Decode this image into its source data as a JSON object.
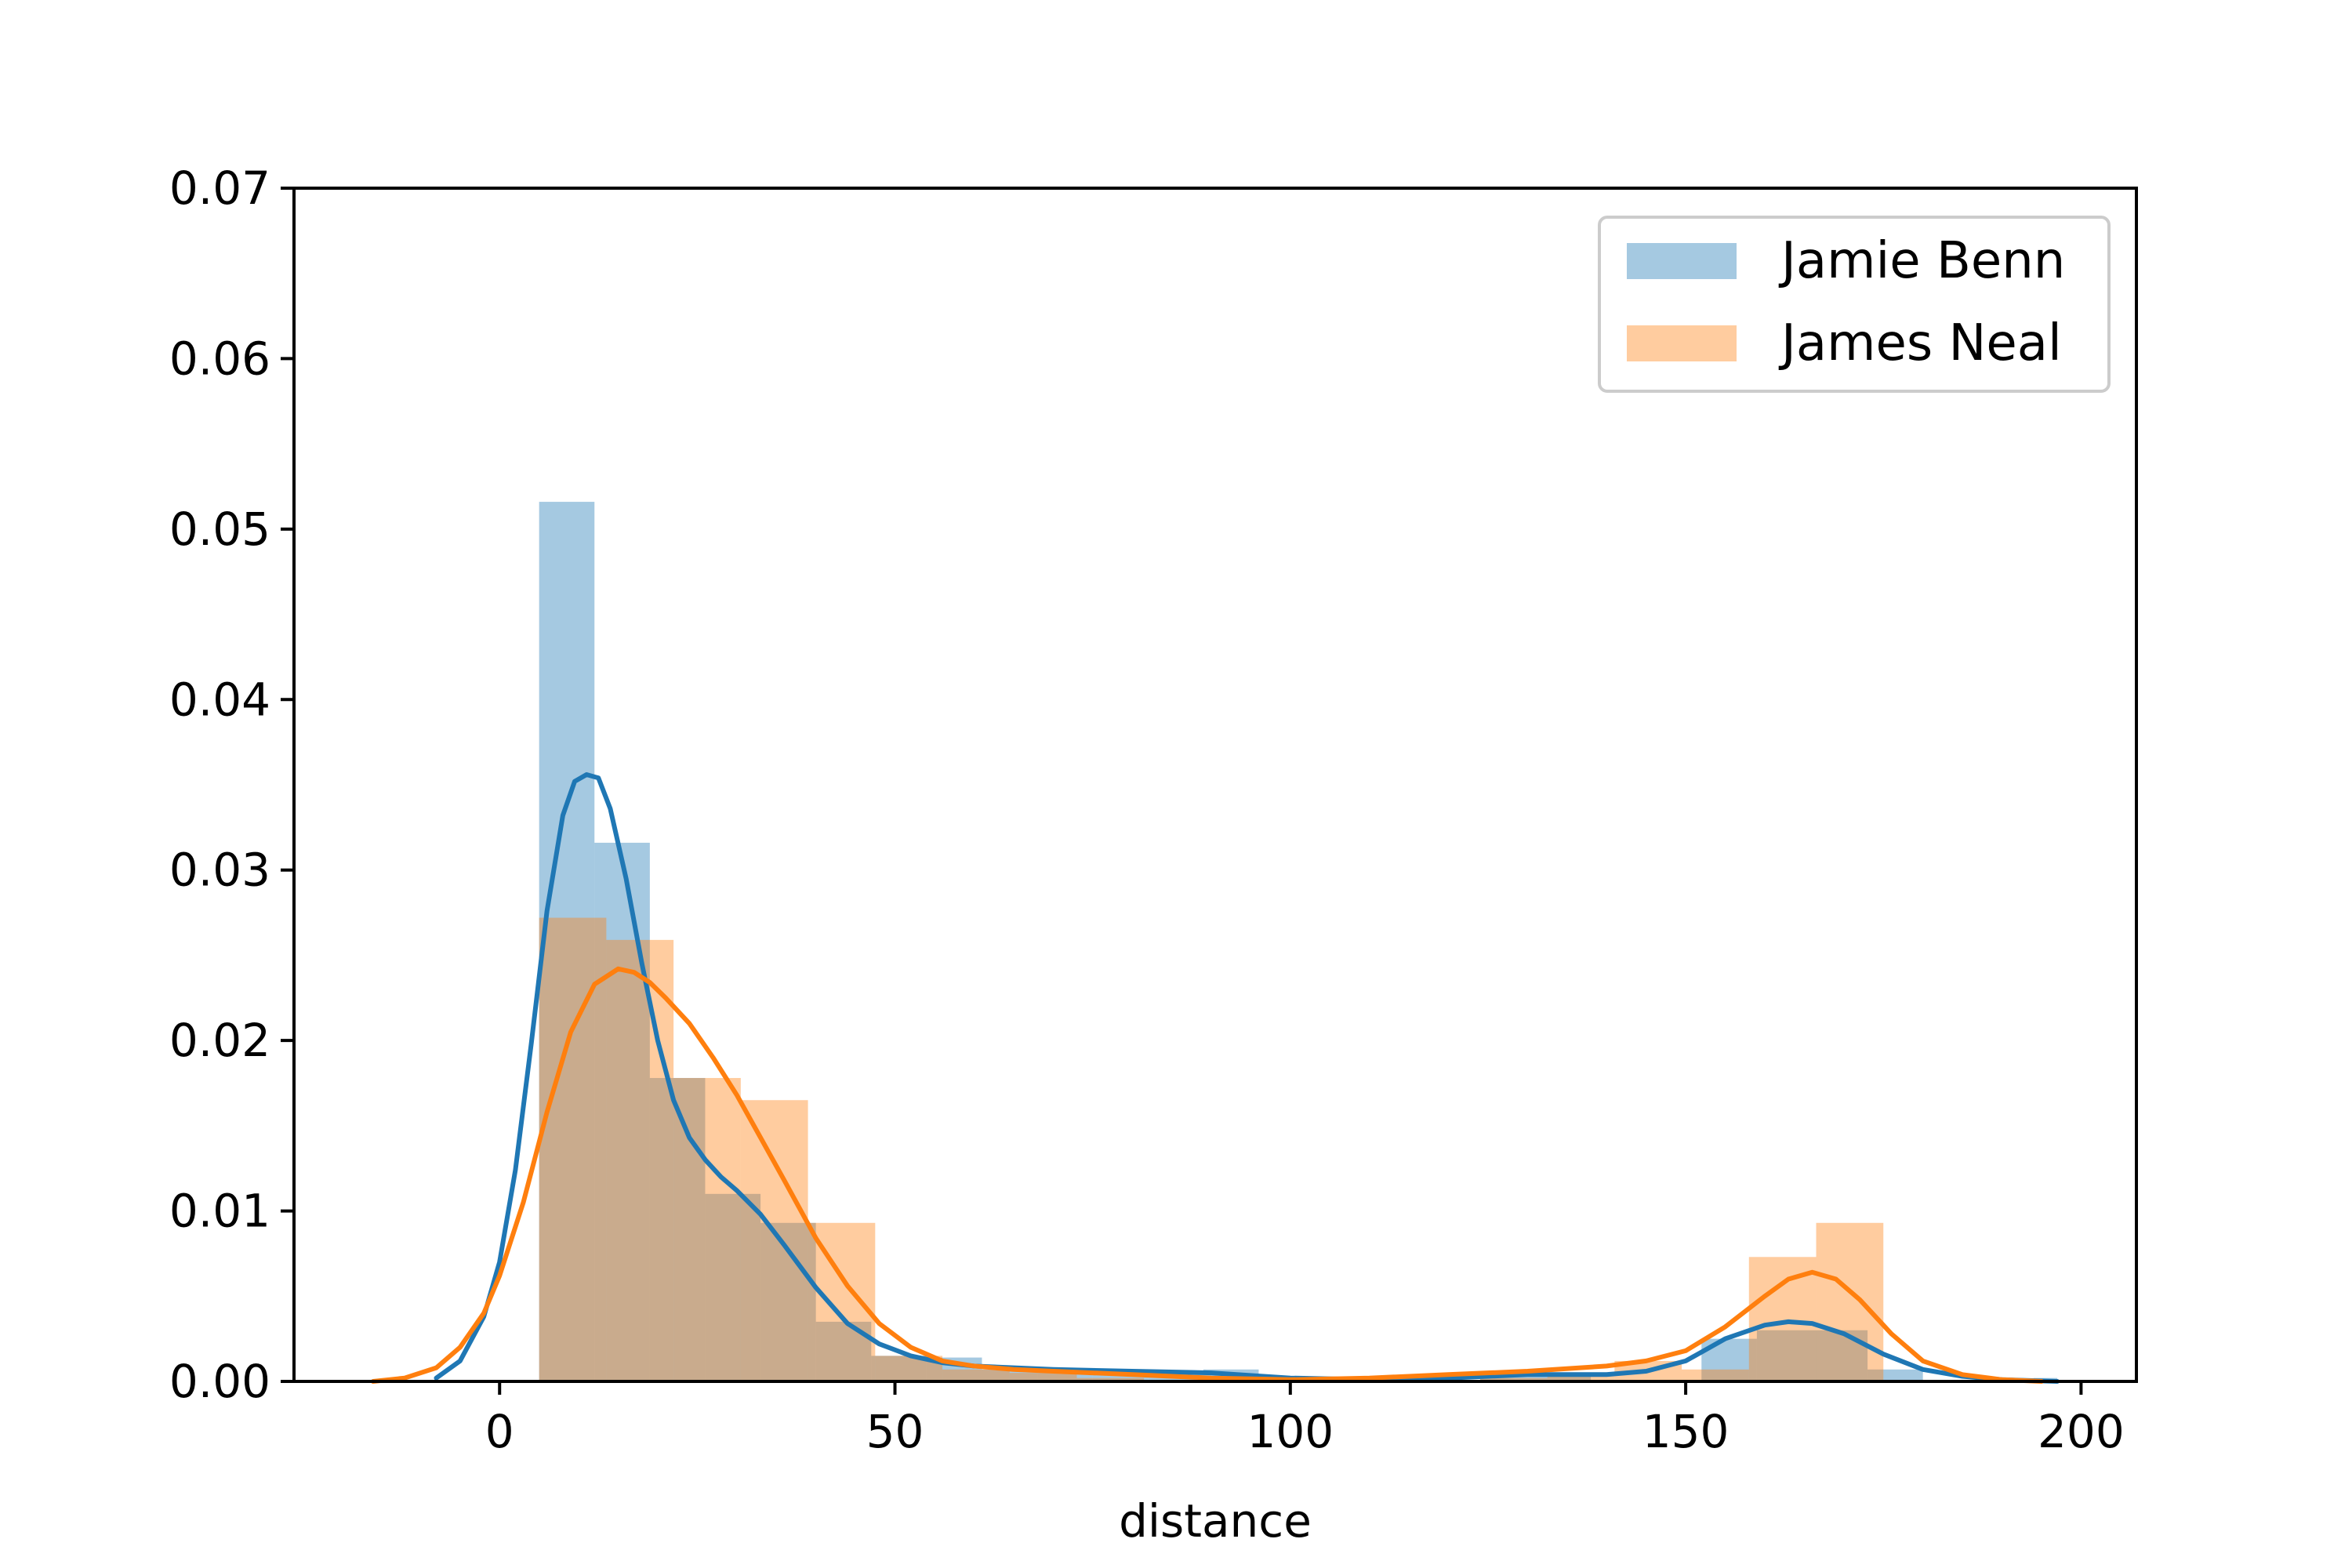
{
  "chart_data": {
    "type": "histogram-kde",
    "xlabel": "distance",
    "ylabel": "",
    "xlim": [
      -26,
      207
    ],
    "ylim": [
      0,
      0.07
    ],
    "xticks": [
      0,
      50,
      100,
      150,
      200
    ],
    "yticks": [
      0.0,
      0.01,
      0.02,
      0.03,
      0.04,
      0.05,
      0.06,
      0.07
    ],
    "ytick_labels": [
      "0.00",
      "0.01",
      "0.02",
      "0.03",
      "0.04",
      "0.05",
      "0.06",
      "0.07"
    ],
    "legend_position": "top-right",
    "grid": false,
    "series": [
      {
        "name": "Jamie Benn",
        "color": "#1f77b4",
        "bins": [
          {
            "x0": 5.0,
            "x1": 12.0,
            "density": 0.0516
          },
          {
            "x0": 12.0,
            "x1": 19.0,
            "density": 0.0316
          },
          {
            "x0": 19.0,
            "x1": 26.0,
            "density": 0.0178
          },
          {
            "x0": 26.0,
            "x1": 33.0,
            "density": 0.011
          },
          {
            "x0": 33.0,
            "x1": 40.0,
            "density": 0.0093
          },
          {
            "x0": 40.0,
            "x1": 47.0,
            "density": 0.0035
          },
          {
            "x0": 47.0,
            "x1": 54.0,
            "density": 0.0015
          },
          {
            "x0": 54.0,
            "x1": 61.0,
            "density": 0.0014
          },
          {
            "x0": 61.0,
            "x1": 68.0,
            "density": 0.0007
          },
          {
            "x0": 68.0,
            "x1": 75.0,
            "density": 0.0007
          },
          {
            "x0": 75.0,
            "x1": 82.0,
            "density": 0.0007
          },
          {
            "x0": 82.0,
            "x1": 89.0,
            "density": 0.0005
          },
          {
            "x0": 89.0,
            "x1": 96.0,
            "density": 0.0007
          },
          {
            "x0": 96.0,
            "x1": 103.0,
            "density": 0.0
          },
          {
            "x0": 103.0,
            "x1": 110.0,
            "density": 0.0
          },
          {
            "x0": 110.0,
            "x1": 117.0,
            "density": 0.0
          },
          {
            "x0": 117.0,
            "x1": 124.0,
            "density": 0.0
          },
          {
            "x0": 124.0,
            "x1": 131.0,
            "density": 0.0005
          },
          {
            "x0": 131.0,
            "x1": 138.0,
            "density": 0.0005
          },
          {
            "x0": 138.0,
            "x1": 145.0,
            "density": 0.0
          },
          {
            "x0": 145.0,
            "x1": 152.0,
            "density": 0.0
          },
          {
            "x0": 152.0,
            "x1": 159.0,
            "density": 0.0025
          },
          {
            "x0": 159.0,
            "x1": 166.0,
            "density": 0.003
          },
          {
            "x0": 166.0,
            "x1": 173.0,
            "density": 0.003
          },
          {
            "x0": 173.0,
            "x1": 180.0,
            "density": 0.0007
          },
          {
            "x0": 180.0,
            "x1": 187.0,
            "density": 0.0
          },
          {
            "x0": 187.0,
            "x1": 194.0,
            "density": 0.0
          },
          {
            "x0": 194.0,
            "x1": 197.0,
            "density": 0.0002
          }
        ],
        "kde": {
          "x": [
            -8,
            -5,
            -2,
            0,
            2,
            4,
            6,
            8,
            9.5,
            11,
            12.5,
            14,
            16,
            18,
            20,
            22,
            24,
            26,
            28,
            30,
            33,
            36,
            40,
            44,
            48,
            52,
            56,
            60,
            70,
            80,
            90,
            100,
            110,
            120,
            130,
            140,
            145,
            150,
            155,
            160,
            163,
            166,
            170,
            175,
            180,
            185,
            190,
            197
          ],
          "y": [
            0.0002,
            0.0012,
            0.0038,
            0.007,
            0.0124,
            0.0198,
            0.0276,
            0.0332,
            0.0352,
            0.0356,
            0.0354,
            0.0336,
            0.0295,
            0.0245,
            0.02,
            0.0165,
            0.0143,
            0.013,
            0.012,
            0.0112,
            0.0098,
            0.008,
            0.0055,
            0.0034,
            0.0022,
            0.0015,
            0.0011,
            0.0009,
            0.0007,
            0.0006,
            0.0005,
            0.0002,
            0.0001,
            0.0002,
            0.0004,
            0.0004,
            0.0006,
            0.0012,
            0.0025,
            0.0033,
            0.0035,
            0.0034,
            0.0028,
            0.0016,
            0.0007,
            0.0003,
            0.0001,
            0.0
          ]
        }
      },
      {
        "name": "James Neal",
        "color": "#ff7f0e",
        "bins": [
          {
            "x0": 5.0,
            "x1": 13.5,
            "density": 0.0272
          },
          {
            "x0": 13.5,
            "x1": 22.0,
            "density": 0.0259
          },
          {
            "x0": 22.0,
            "x1": 30.5,
            "density": 0.0178
          },
          {
            "x0": 30.5,
            "x1": 39.0,
            "density": 0.0165
          },
          {
            "x0": 39.0,
            "x1": 47.5,
            "density": 0.0093
          },
          {
            "x0": 47.5,
            "x1": 56.0,
            "density": 0.0015
          },
          {
            "x0": 56.0,
            "x1": 64.5,
            "density": 0.0007
          },
          {
            "x0": 64.5,
            "x1": 73.0,
            "density": 0.0005
          },
          {
            "x0": 73.0,
            "x1": 81.5,
            "density": 0.0002
          },
          {
            "x0": 81.5,
            "x1": 90.0,
            "density": 0.0
          },
          {
            "x0": 90.0,
            "x1": 98.5,
            "density": 0.0
          },
          {
            "x0": 98.5,
            "x1": 107.0,
            "density": 0.0
          },
          {
            "x0": 107.0,
            "x1": 115.5,
            "density": 0.0
          },
          {
            "x0": 115.5,
            "x1": 124.0,
            "density": 0.0
          },
          {
            "x0": 124.0,
            "x1": 132.5,
            "density": 0.0002
          },
          {
            "x0": 132.5,
            "x1": 141.0,
            "density": 0.0005
          },
          {
            "x0": 141.0,
            "x1": 149.5,
            "density": 0.0012
          },
          {
            "x0": 149.5,
            "x1": 158.0,
            "density": 0.0007
          },
          {
            "x0": 158.0,
            "x1": 166.5,
            "density": 0.0073
          },
          {
            "x0": 166.5,
            "x1": 175.0,
            "density": 0.0093
          },
          {
            "x0": 175.0,
            "x1": 183.5,
            "density": 0.0
          }
        ],
        "kde": {
          "x": [
            -16,
            -12,
            -8,
            -5,
            -2,
            0,
            3,
            6,
            9,
            12,
            15,
            17,
            19,
            21,
            24,
            27,
            30,
            33,
            36,
            40,
            44,
            48,
            52,
            56,
            60,
            65,
            70,
            80,
            90,
            100,
            110,
            120,
            130,
            140,
            145,
            150,
            155,
            160,
            163,
            166,
            169,
            172,
            176,
            180,
            185,
            190,
            195
          ],
          "y": [
            0.0,
            0.0002,
            0.0008,
            0.002,
            0.004,
            0.0062,
            0.0105,
            0.0158,
            0.0205,
            0.0233,
            0.0242,
            0.024,
            0.0234,
            0.0225,
            0.021,
            0.019,
            0.0168,
            0.0143,
            0.0118,
            0.0084,
            0.0056,
            0.0034,
            0.002,
            0.0012,
            0.0009,
            0.0007,
            0.0006,
            0.0004,
            0.0002,
            0.0001,
            0.0002,
            0.0004,
            0.0006,
            0.0009,
            0.0012,
            0.0018,
            0.0032,
            0.005,
            0.006,
            0.0064,
            0.006,
            0.0048,
            0.0028,
            0.0012,
            0.0004,
            0.0001,
            0.0
          ]
        }
      }
    ]
  }
}
